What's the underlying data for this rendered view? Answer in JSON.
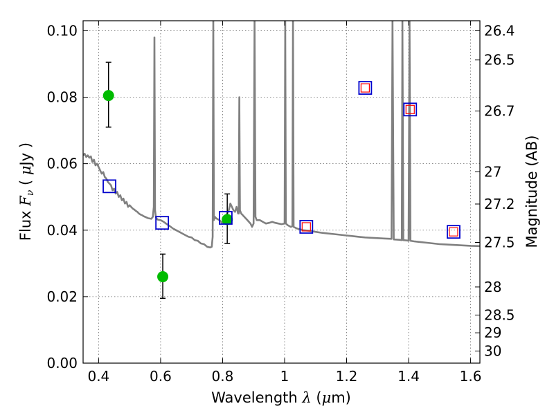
{
  "chart_data": {
    "type": "scatter",
    "xlabel": "Wavelength  λ (μm)",
    "ylabel": "Flux  Fν  ( μJy )",
    "y2label": "Magnitude (AB)",
    "xlim": [
      0.35,
      1.63
    ],
    "ylim": [
      0.0,
      0.103
    ],
    "grid": true,
    "x_ticks": [
      0.4,
      0.6,
      0.8,
      1.0,
      1.2,
      1.4,
      1.6
    ],
    "x_tick_labels": [
      "0.4",
      "0.6",
      "0.8",
      "1",
      "1.2",
      "1.4",
      "1.6"
    ],
    "y_ticks": [
      0.0,
      0.02,
      0.04,
      0.06,
      0.08,
      0.1
    ],
    "y_tick_labels": [
      "0.00",
      "0.02",
      "0.04",
      "0.06",
      "0.08",
      "0.10"
    ],
    "magnitude_ticks": [
      {
        "label": "26.4",
        "value": 26.4
      },
      {
        "label": "26.5",
        "value": 26.5
      },
      {
        "label": "26.7",
        "value": 26.7
      },
      {
        "label": "27",
        "value": 27.0
      },
      {
        "label": "27.2",
        "value": 27.2
      },
      {
        "label": "27.5",
        "value": 27.5
      },
      {
        "label": "28",
        "value": 28.0
      },
      {
        "label": "28.5",
        "value": 28.5
      },
      {
        "label": "29",
        "value": 29.0
      },
      {
        "label": "30",
        "value": 30.0
      }
    ],
    "model_spectrum": {
      "color": "#808080",
      "points": [
        [
          0.35,
          0.0625
        ],
        [
          0.355,
          0.063
        ],
        [
          0.36,
          0.062
        ],
        [
          0.365,
          0.0625
        ],
        [
          0.37,
          0.0618
        ],
        [
          0.375,
          0.0622
        ],
        [
          0.38,
          0.0605
        ],
        [
          0.385,
          0.0612
        ],
        [
          0.39,
          0.0595
        ],
        [
          0.395,
          0.06
        ],
        [
          0.4,
          0.059
        ],
        [
          0.405,
          0.058
        ],
        [
          0.41,
          0.057
        ],
        [
          0.415,
          0.0575
        ],
        [
          0.42,
          0.056
        ],
        [
          0.425,
          0.0555
        ],
        [
          0.43,
          0.0545
        ],
        [
          0.435,
          0.054
        ],
        [
          0.44,
          0.0535
        ],
        [
          0.445,
          0.052
        ],
        [
          0.45,
          0.0525
        ],
        [
          0.455,
          0.051
        ],
        [
          0.46,
          0.0515
        ],
        [
          0.465,
          0.05
        ],
        [
          0.47,
          0.0505
        ],
        [
          0.475,
          0.049
        ],
        [
          0.48,
          0.0495
        ],
        [
          0.485,
          0.048
        ],
        [
          0.49,
          0.0485
        ],
        [
          0.495,
          0.047
        ],
        [
          0.5,
          0.0475
        ],
        [
          0.505,
          0.047
        ],
        [
          0.51,
          0.0465
        ],
        [
          0.515,
          0.0462
        ],
        [
          0.52,
          0.0458
        ],
        [
          0.525,
          0.0455
        ],
        [
          0.53,
          0.045
        ],
        [
          0.535,
          0.0447
        ],
        [
          0.54,
          0.0445
        ],
        [
          0.545,
          0.0442
        ],
        [
          0.55,
          0.044
        ],
        [
          0.555,
          0.0438
        ],
        [
          0.56,
          0.0436
        ],
        [
          0.565,
          0.0435
        ],
        [
          0.57,
          0.0434
        ],
        [
          0.575,
          0.044
        ],
        [
          0.578,
          0.047
        ],
        [
          0.58,
          0.098
        ],
        [
          0.582,
          0.046
        ],
        [
          0.585,
          0.0438
        ],
        [
          0.59,
          0.0432
        ],
        [
          0.6,
          0.043
        ],
        [
          0.61,
          0.0425
        ],
        [
          0.62,
          0.0418
        ],
        [
          0.63,
          0.0412
        ],
        [
          0.64,
          0.0405
        ],
        [
          0.65,
          0.04
        ],
        [
          0.66,
          0.0395
        ],
        [
          0.67,
          0.039
        ],
        [
          0.68,
          0.0385
        ],
        [
          0.69,
          0.038
        ],
        [
          0.7,
          0.0378
        ],
        [
          0.71,
          0.037
        ],
        [
          0.72,
          0.0368
        ],
        [
          0.73,
          0.036
        ],
        [
          0.74,
          0.0358
        ],
        [
          0.75,
          0.035
        ],
        [
          0.76,
          0.0348
        ],
        [
          0.765,
          0.035
        ],
        [
          0.768,
          0.038
        ],
        [
          0.77,
          0.103
        ],
        [
          0.772,
          0.043
        ],
        [
          0.775,
          0.044
        ],
        [
          0.78,
          0.0435
        ],
        [
          0.79,
          0.043
        ],
        [
          0.8,
          0.042
        ],
        [
          0.805,
          0.043
        ],
        [
          0.81,
          0.044
        ],
        [
          0.815,
          0.045
        ],
        [
          0.82,
          0.046
        ],
        [
          0.825,
          0.048
        ],
        [
          0.83,
          0.047
        ],
        [
          0.835,
          0.046
        ],
        [
          0.84,
          0.0455
        ],
        [
          0.845,
          0.047
        ],
        [
          0.85,
          0.045
        ],
        [
          0.852,
          0.045
        ],
        [
          0.854,
          0.08
        ],
        [
          0.856,
          0.046
        ],
        [
          0.86,
          0.045
        ],
        [
          0.87,
          0.044
        ],
        [
          0.88,
          0.043
        ],
        [
          0.89,
          0.042
        ],
        [
          0.895,
          0.041
        ],
        [
          0.9,
          0.042
        ],
        [
          0.903,
          0.103
        ],
        [
          0.906,
          0.044
        ],
        [
          0.91,
          0.043
        ],
        [
          0.92,
          0.043
        ],
        [
          0.93,
          0.0425
        ],
        [
          0.94,
          0.042
        ],
        [
          0.95,
          0.0422
        ],
        [
          0.96,
          0.0425
        ],
        [
          0.97,
          0.0422
        ],
        [
          0.98,
          0.042
        ],
        [
          0.99,
          0.0418
        ],
        [
          1.0,
          0.042
        ],
        [
          1.002,
          0.103
        ],
        [
          1.004,
          0.042
        ],
        [
          1.01,
          0.0415
        ],
        [
          1.02,
          0.041
        ],
        [
          1.025,
          0.0412
        ],
        [
          1.027,
          0.103
        ],
        [
          1.029,
          0.041
        ],
        [
          1.04,
          0.0405
        ],
        [
          1.06,
          0.04
        ],
        [
          1.08,
          0.0398
        ],
        [
          1.1,
          0.0395
        ],
        [
          1.12,
          0.0392
        ],
        [
          1.14,
          0.039
        ],
        [
          1.16,
          0.0388
        ],
        [
          1.18,
          0.0386
        ],
        [
          1.2,
          0.0384
        ],
        [
          1.22,
          0.0382
        ],
        [
          1.24,
          0.038
        ],
        [
          1.26,
          0.0378
        ],
        [
          1.28,
          0.0377
        ],
        [
          1.3,
          0.0376
        ],
        [
          1.32,
          0.0375
        ],
        [
          1.345,
          0.0374
        ],
        [
          1.348,
          0.103
        ],
        [
          1.352,
          0.0372
        ],
        [
          1.37,
          0.0371
        ],
        [
          1.378,
          0.037
        ],
        [
          1.38,
          0.103
        ],
        [
          1.383,
          0.037
        ],
        [
          1.395,
          0.0369
        ],
        [
          1.4,
          0.0368
        ],
        [
          1.403,
          0.103
        ],
        [
          1.406,
          0.0368
        ],
        [
          1.42,
          0.0366
        ],
        [
          1.44,
          0.0364
        ],
        [
          1.46,
          0.0362
        ],
        [
          1.48,
          0.036
        ],
        [
          1.5,
          0.0358
        ],
        [
          1.52,
          0.0357
        ],
        [
          1.54,
          0.0356
        ],
        [
          1.56,
          0.0355
        ],
        [
          1.58,
          0.0354
        ],
        [
          1.6,
          0.0353
        ],
        [
          1.63,
          0.0352
        ]
      ]
    },
    "model_photometry_blue": {
      "marker": "open-square",
      "color": "#0000cc",
      "points": [
        [
          0.435,
          0.0532
        ],
        [
          0.605,
          0.0422
        ],
        [
          0.81,
          0.0437
        ],
        [
          1.07,
          0.041
        ],
        [
          1.26,
          0.0828
        ],
        [
          1.405,
          0.0763
        ],
        [
          1.545,
          0.0395
        ]
      ]
    },
    "model_photometry_red": {
      "marker": "open-square-small",
      "color": "#ff0000",
      "points": [
        [
          1.07,
          0.041
        ],
        [
          1.26,
          0.0828
        ],
        [
          1.405,
          0.0763
        ],
        [
          1.545,
          0.0395
        ]
      ]
    },
    "observed": {
      "marker": "filled-circle",
      "color": "#00bb00",
      "errorbar_color": "#000000",
      "points": [
        {
          "x": 0.432,
          "y": 0.0805,
          "yerr_low": 0.0095,
          "yerr_high": 0.01
        },
        {
          "x": 0.607,
          "y": 0.026,
          "yerr_low": 0.0065,
          "yerr_high": 0.0068
        },
        {
          "x": 0.815,
          "y": 0.0432,
          "yerr_low": 0.0072,
          "yerr_high": 0.0077
        }
      ]
    }
  }
}
